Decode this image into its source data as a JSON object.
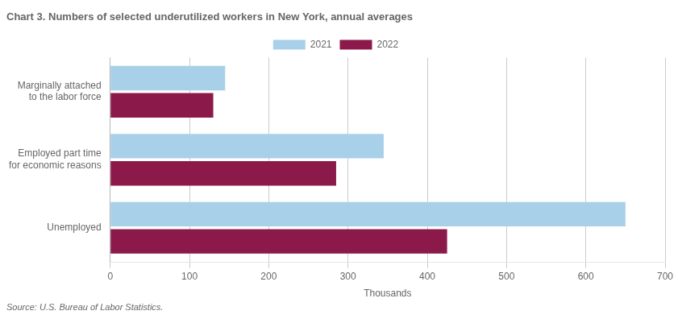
{
  "chart_data": {
    "type": "bar",
    "orientation": "horizontal",
    "title": "Chart 3. Numbers of selected underutilized workers in New York, annual averages",
    "categories": [
      "Marginally attached\nto the labor force",
      "Employed part time\nfor economic reasons",
      "Unemployed"
    ],
    "series": [
      {
        "name": "2021",
        "color": "#a8d0e8",
        "values": [
          145,
          345,
          650
        ]
      },
      {
        "name": "2022",
        "color": "#8b1a4a",
        "values": [
          130,
          285,
          425
        ]
      }
    ],
    "xlabel": "Thousands",
    "xlim": [
      0,
      700
    ],
    "xticks": [
      0,
      100,
      200,
      300,
      400,
      500,
      600,
      700
    ],
    "grid": true,
    "legend": "top",
    "annotations": [
      "Source: U.S. Bureau of Labor Statistics."
    ]
  }
}
